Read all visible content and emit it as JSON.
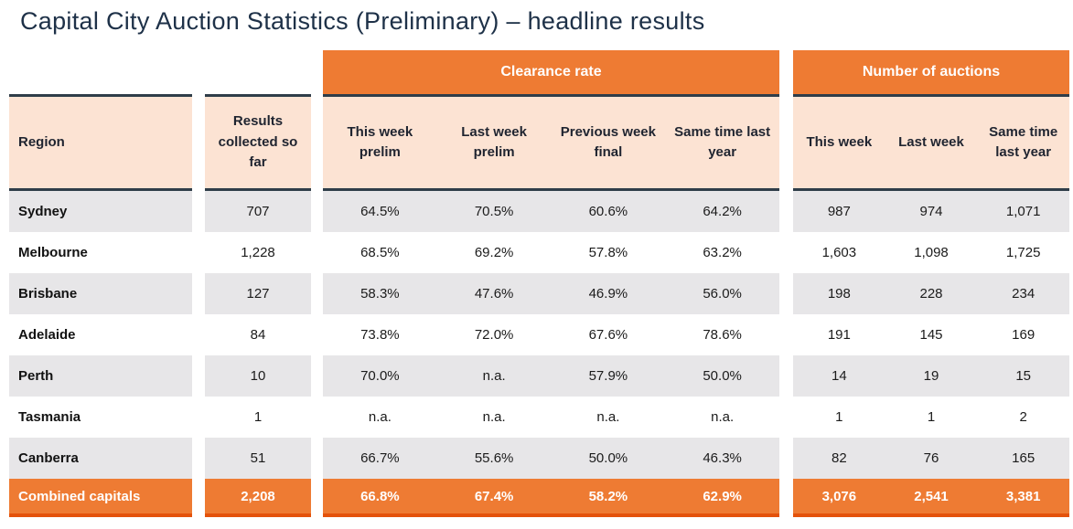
{
  "title": "Capital City Auction Statistics (Preliminary) – headline results",
  "chart_data": {
    "type": "table",
    "title": "Capital City Auction Statistics (Preliminary) – headline results",
    "column_groups": [
      {
        "label": "Clearance rate",
        "span": 4
      },
      {
        "label": "Number of auctions",
        "span": 3
      }
    ],
    "columns": {
      "region": "Region",
      "results": "Results collected so far",
      "clearance": [
        "This week prelim",
        "Last week prelim",
        "Previous week final",
        "Same time last year"
      ],
      "auctions": [
        "This week",
        "Last week",
        "Same time last year"
      ]
    },
    "rows": [
      {
        "region": "Sydney",
        "results": "707",
        "clearance": [
          "64.5%",
          "70.5%",
          "60.6%",
          "64.2%"
        ],
        "auctions": [
          "987",
          "974",
          "1,071"
        ]
      },
      {
        "region": "Melbourne",
        "results": "1,228",
        "clearance": [
          "68.5%",
          "69.2%",
          "57.8%",
          "63.2%"
        ],
        "auctions": [
          "1,603",
          "1,098",
          "1,725"
        ]
      },
      {
        "region": "Brisbane",
        "results": "127",
        "clearance": [
          "58.3%",
          "47.6%",
          "46.9%",
          "56.0%"
        ],
        "auctions": [
          "198",
          "228",
          "234"
        ]
      },
      {
        "region": "Adelaide",
        "results": "84",
        "clearance": [
          "73.8%",
          "72.0%",
          "67.6%",
          "78.6%"
        ],
        "auctions": [
          "191",
          "145",
          "169"
        ]
      },
      {
        "region": "Perth",
        "results": "10",
        "clearance": [
          "70.0%",
          "n.a.",
          "57.9%",
          "50.0%"
        ],
        "auctions": [
          "14",
          "19",
          "15"
        ]
      },
      {
        "region": "Tasmania",
        "results": "1",
        "clearance": [
          "n.a.",
          "n.a.",
          "n.a.",
          "n.a."
        ],
        "auctions": [
          "1",
          "1",
          "2"
        ]
      },
      {
        "region": "Canberra",
        "results": "51",
        "clearance": [
          "66.7%",
          "55.6%",
          "50.0%",
          "46.3%"
        ],
        "auctions": [
          "82",
          "76",
          "165"
        ]
      }
    ],
    "total_row": {
      "region": "Combined capitals",
      "results": "2,208",
      "clearance": [
        "66.8%",
        "67.4%",
        "58.2%",
        "62.9%"
      ],
      "auctions": [
        "3,076",
        "2,541",
        "3,381"
      ]
    }
  },
  "colors": {
    "accent_orange": "#EE7B33",
    "accent_orange_dark": "#E4520B",
    "header_peach": "#FCE3D3",
    "row_grey": "#E7E6E8",
    "border_navy": "#2F3D49",
    "title_navy": "#1E3148"
  }
}
